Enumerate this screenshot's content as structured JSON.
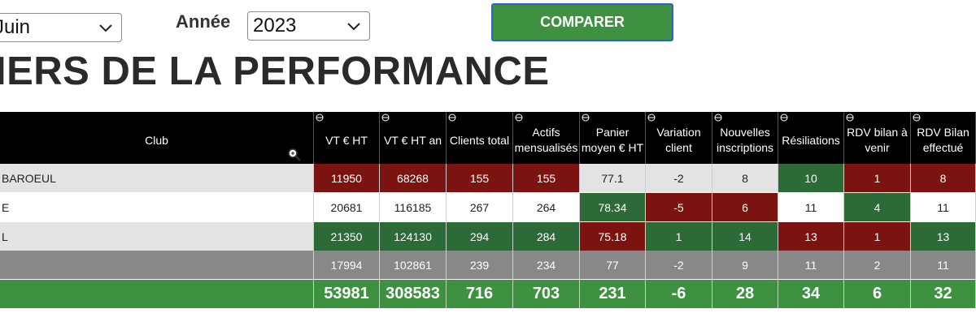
{
  "filters": {
    "month_value": "Juin",
    "year_label": "Année",
    "year_value": "2023",
    "compare_label": "COMPARER"
  },
  "title": "IERS DE LA PERFORMANCE",
  "table": {
    "columns": [
      "Club",
      "VT € HT",
      "VT € HT an",
      "Clients total",
      "Actifs mensualisés",
      "Panier moyen € HT",
      "Variation client",
      "Nouvelles inscriptions",
      "Résiliations",
      "RDV bilan à venir",
      "RDV Bilan effectué"
    ],
    "rows": [
      {
        "club": "BAROEUL",
        "values": [
          "11950",
          "68268",
          "155",
          "155",
          "77.1",
          "-2",
          "8",
          "10",
          "1",
          "8"
        ]
      },
      {
        "club": "E",
        "values": [
          "20681",
          "116185",
          "267",
          "264",
          "78.34",
          "-5",
          "6",
          "11",
          "4",
          "11"
        ]
      },
      {
        "club": "L",
        "values": [
          "21350",
          "124130",
          "294",
          "284",
          "75.18",
          "1",
          "14",
          "13",
          "1",
          "13"
        ]
      },
      {
        "club": "",
        "values": [
          "17994",
          "102861",
          "239",
          "234",
          "77",
          "-2",
          "9",
          "11",
          "2",
          "11"
        ]
      }
    ],
    "totals": [
      "53981",
      "308583",
      "716",
      "703",
      "231",
      "-6",
      "28",
      "34",
      "6",
      "32"
    ]
  },
  "colors": {
    "dark_red": "#7b1410",
    "dark_green": "#2c6a37",
    "total_green": "#3f9142",
    "average_gray": "#888888",
    "light_gray": "#e3e3e3",
    "header_black": "#000000",
    "button_border": "#2f63c7"
  },
  "icons": [
    "chevron-down-icon",
    "sort-toggle-icon",
    "zoom-icon"
  ]
}
